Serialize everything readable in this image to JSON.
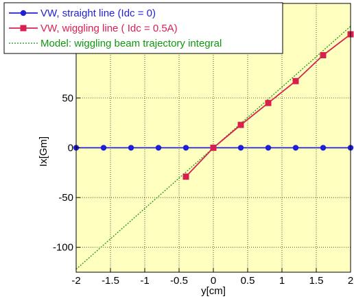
{
  "chart_data": {
    "type": "line",
    "xlabel": "y[cm]",
    "ylabel": "Ix[Gm]",
    "xlim": [
      -2,
      2
    ],
    "ylim": [
      -125,
      145
    ],
    "xticks": [
      -2,
      -1.5,
      -1,
      -0.5,
      0,
      0.5,
      1,
      1.5,
      2
    ],
    "xtick_labels": [
      "-2",
      "-1.5",
      "-1",
      "-0.5",
      "0",
      "0.5",
      "1",
      "1.5",
      "2"
    ],
    "yticks": [
      -100,
      -50,
      0,
      50
    ],
    "ytick_labels": [
      "-100",
      "-50",
      "0",
      "50"
    ],
    "grid": true,
    "legend_position": "top-left",
    "colors": {
      "plot_bg": "#ffffc0",
      "blue": "#1f1fd6",
      "red": "#d8204f",
      "green": "#129612"
    },
    "series": [
      {
        "name": "VW, straight line (Idc = 0)",
        "color": "#1f1fd6",
        "marker": "circle",
        "style": "solid",
        "x": [
          -2,
          -1.6,
          -1.2,
          -0.8,
          -0.4,
          0,
          0.4,
          0.8,
          1.2,
          1.6,
          2
        ],
        "y": [
          0,
          0,
          0,
          0,
          0,
          0,
          0,
          0,
          0,
          0,
          0
        ]
      },
      {
        "name": "VW, wiggling line ( Idc = 0.5A)",
        "color": "#d8204f",
        "marker": "square",
        "style": "solid",
        "x": [
          -0.4,
          0,
          0.4,
          0.8,
          1.2,
          1.6,
          2
        ],
        "y": [
          -29,
          0,
          23,
          45,
          67,
          93,
          114
        ]
      },
      {
        "name": "Model: wiggling beam trajectory integral",
        "color": "#129612",
        "marker": "none",
        "style": "dotted",
        "x": [
          -2,
          2
        ],
        "y": [
          -122,
          122
        ]
      }
    ]
  }
}
